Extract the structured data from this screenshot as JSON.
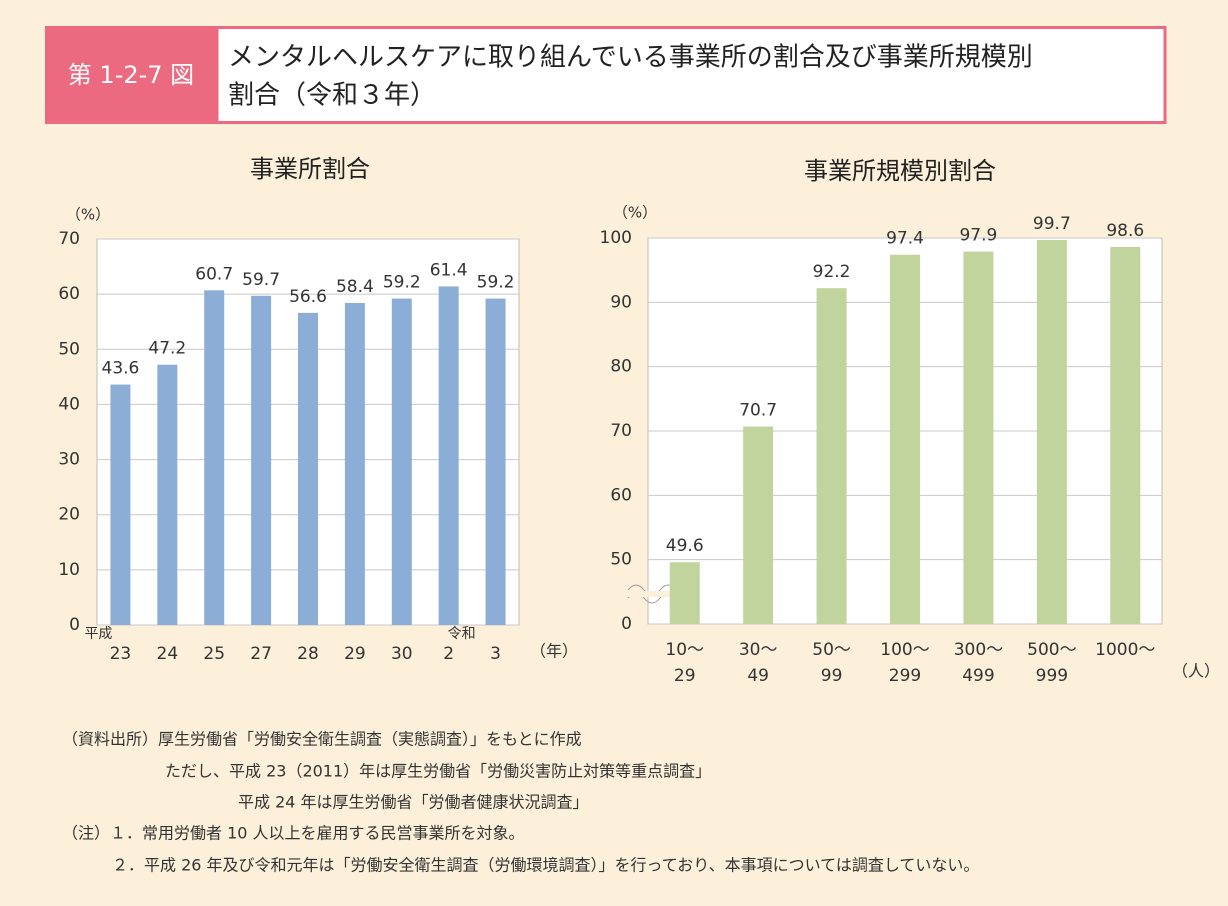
{
  "header": {
    "label": "第 1-2-7 図",
    "title": [
      "メンタルヘルスケアに取り組んでいる事業所の割合及び事業所規模別",
      "割合（令和３年）"
    ]
  },
  "chart_data": [
    {
      "type": "bar",
      "title": "事業所割合",
      "y_unit": "（%）",
      "x_unit": "（年）",
      "era_labels": [
        {
          "category": 0,
          "label": "平成"
        },
        {
          "category": 7,
          "label": "令和"
        }
      ],
      "categories": [
        "23",
        "24",
        "25",
        "27",
        "28",
        "29",
        "30",
        "2",
        "3"
      ],
      "values": [
        43.6,
        47.2,
        60.7,
        59.7,
        56.6,
        58.4,
        59.2,
        61.4,
        59.2
      ],
      "color": "#8caed6",
      "ylim": [
        0,
        70
      ],
      "yticks": [
        0,
        10,
        20,
        30,
        40,
        50,
        60,
        70
      ],
      "grid": true
    },
    {
      "type": "bar",
      "title": "事業所規模別割合",
      "y_unit": "（%）",
      "x_unit": "（人）",
      "axis_break": true,
      "categories": [
        [
          "10〜",
          "29"
        ],
        [
          "30〜",
          "49"
        ],
        [
          "50〜",
          "99"
        ],
        [
          "100〜",
          "299"
        ],
        [
          "300〜",
          "499"
        ],
        [
          "500〜",
          "999"
        ],
        [
          "1000〜"
        ]
      ],
      "values": [
        49.6,
        70.7,
        92.2,
        97.4,
        97.9,
        99.7,
        98.6
      ],
      "color": "#c2d49e",
      "ylim": [
        40,
        100
      ],
      "yticks": [
        {
          "value": 40,
          "label": "0"
        },
        50,
        60,
        70,
        80,
        90,
        100
      ],
      "grid": true
    }
  ],
  "notes": [
    "（資料出所）厚生労働省「労働安全衛生調査（実態調査）」をもとに作成",
    "ただし、平成 23（2011）年は厚生労働省「労働災害防止対策等重点調査」",
    "平成 24 年は厚生労働省「労働者健康状況調査」",
    "（注）１．常用労働者 10 人以上を雇用する民営事業所を対象。",
    "２．平成 26 年及び令和元年は「労働安全衛生調査（労働環境調査）」を行っており、本事項については調査していない。"
  ]
}
